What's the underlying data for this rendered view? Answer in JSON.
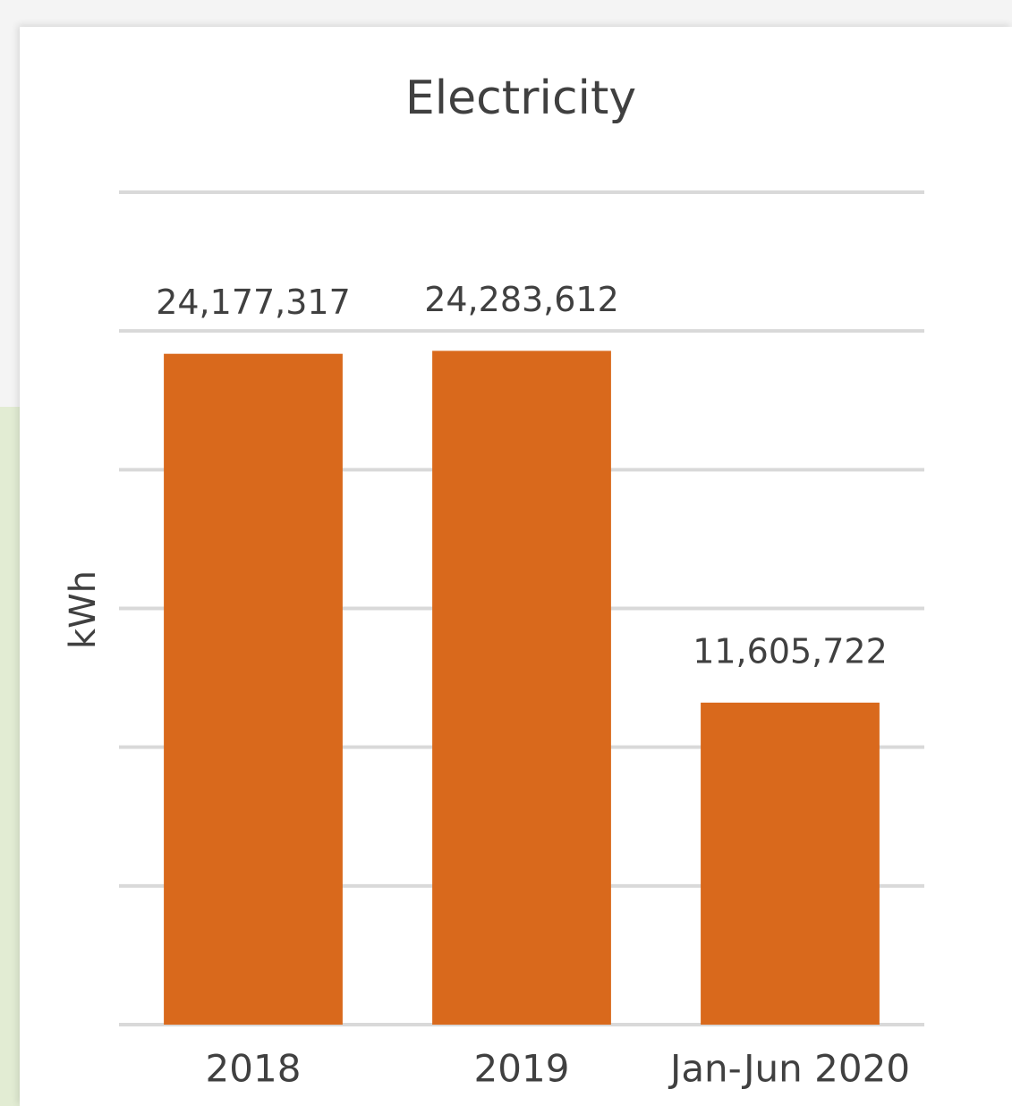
{
  "chart_data": {
    "type": "bar",
    "title": "Electricity",
    "y_label": "kWh",
    "categories": [
      "2018",
      "2019",
      "Jan-Jun 2020"
    ],
    "values": [
      24177317,
      24283612,
      11605722
    ],
    "value_labels": [
      "24,177,317",
      "24,283,612",
      "11,605,722"
    ],
    "color": "#d9691c",
    "ylim": [
      0,
      30000000
    ],
    "yticks": [
      0,
      5000000,
      10000000,
      15000000,
      20000000,
      25000000,
      30000000
    ],
    "grid": true
  }
}
